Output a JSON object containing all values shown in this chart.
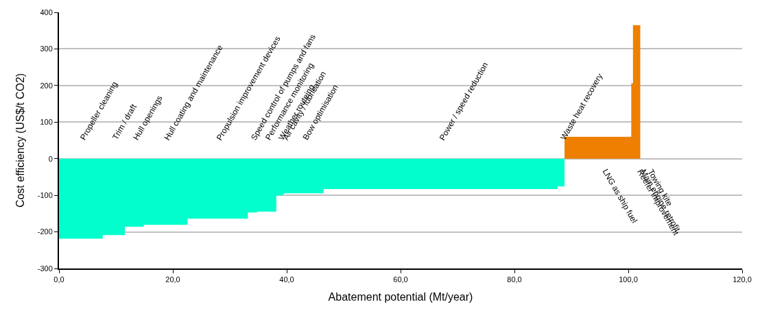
{
  "chart_data": {
    "type": "area",
    "xlabel": "Abatement potential (Mt/year)",
    "ylabel": "Cost efficiency (US$/t CO2)",
    "series": [
      {
        "color": "#00ffcc",
        "x": [
          0,
          7.5,
          7.5,
          11.4,
          11.4,
          14.7,
          14.7,
          22.4,
          22.4,
          33.0,
          33.0,
          34.6,
          34.6,
          38.0,
          38.0,
          39.2,
          39.2,
          39.4,
          39.4,
          46.3,
          46.3,
          87.4,
          87.4,
          88.8
        ],
        "values": [
          -216,
          -216,
          -206,
          -206,
          -183,
          -183,
          -178,
          -178,
          -161,
          -161,
          -144,
          -144,
          -142,
          -142,
          -98,
          -98,
          -93,
          -93,
          -92,
          -92,
          -80,
          -80,
          -73,
          -73
        ]
      },
      {
        "color": "#ee7f00",
        "x": [
          88.8,
          100.7,
          100.7,
          101.0,
          101.0,
          102.1
        ],
        "values": [
          57,
          57,
          203,
          203,
          362,
          362
        ]
      }
    ],
    "annotations": [
      "Propeller cleaning",
      "Trim / draft",
      "Hull openings",
      "Hull coating and maintenance",
      "Propulsion improvement devices",
      "Speed control of pumps and fans",
      "Performance monitoring",
      "Weather routeing",
      "Air cavity / lubrication",
      "Bow optimisation",
      "Power / speed reduction",
      "Waste heat recovery",
      "LNG as ship fuel",
      "Reefer improvement",
      "Main engine retrofit",
      "Towing kite"
    ],
    "xlim": [
      0,
      120
    ],
    "xticks": [
      {
        "value": 0,
        "label": "0,0"
      },
      {
        "value": 20,
        "label": "20,0"
      },
      {
        "value": 40,
        "label": "40,0"
      },
      {
        "value": 60,
        "label": "60,0"
      },
      {
        "value": 80,
        "label": "80,0"
      },
      {
        "value": 100,
        "label": "100,0"
      },
      {
        "value": 120,
        "label": "120,0"
      }
    ],
    "ylim": [
      -300,
      400
    ],
    "yticks": [
      -300,
      -200,
      -100,
      0,
      100,
      200,
      300,
      400
    ],
    "grid": "y"
  }
}
